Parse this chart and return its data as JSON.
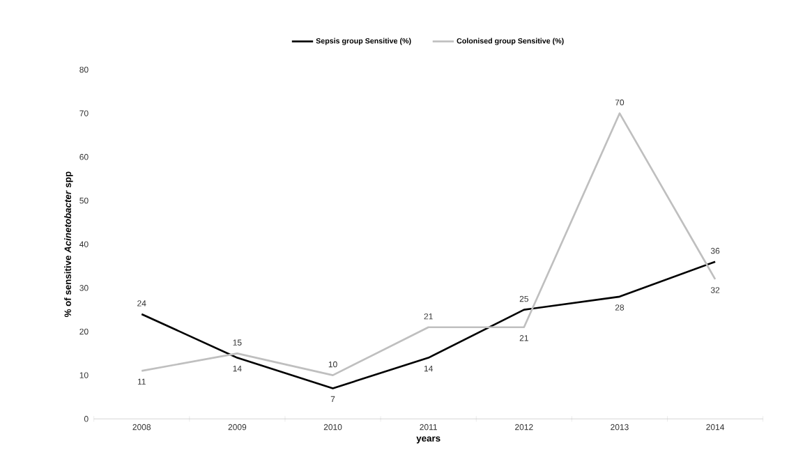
{
  "chart_data": {
    "type": "line",
    "xlabel": "years",
    "ylabel": "% of sensitive *Acinetobacter* spp",
    "categories": [
      "2008",
      "2009",
      "2010",
      "2011",
      "2012",
      "2013",
      "2014"
    ],
    "series": [
      {
        "name": "Sepsis group  Sensitive (%)",
        "color": "#000000",
        "values": [
          24,
          14,
          7,
          14,
          25,
          28,
          36
        ]
      },
      {
        "name": "Colonised group Sensitive  (%)",
        "color": "#bfbfbf",
        "values": [
          11,
          15,
          10,
          21,
          21,
          70,
          32
        ]
      }
    ],
    "ylim": [
      0,
      80
    ],
    "yticks": [
      0,
      10,
      20,
      30,
      40,
      50,
      60,
      70,
      80
    ],
    "data_labels": true,
    "legend": "top"
  }
}
